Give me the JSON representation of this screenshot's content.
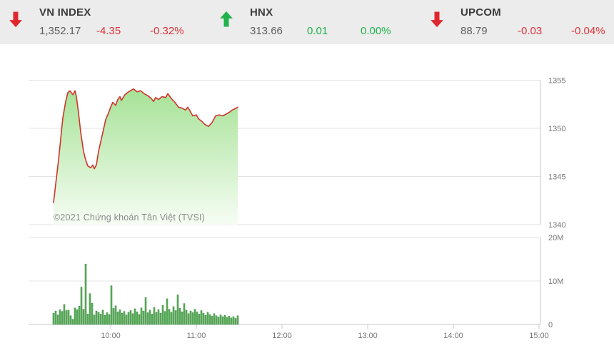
{
  "header": {
    "tickers": [
      {
        "name": "VN INDEX",
        "value": "1,352.17",
        "change": "-4.35",
        "change_pct": "-0.32%",
        "direction": "down"
      },
      {
        "name": "HNX",
        "value": "313.66",
        "change": "0.01",
        "change_pct": "0.00%",
        "direction": "up"
      },
      {
        "name": "UPCOM",
        "value": "88.79",
        "change": "-0.03",
        "change_pct": "-0.04%",
        "direction": "down"
      }
    ]
  },
  "watermark": "©2021 Chứng khoán Tân Việt (TVSI)",
  "colors": {
    "header_bg": "#ececec",
    "up_green": "#21b24b",
    "down_red": "#e0262d",
    "line_red": "#d0342c",
    "fill_green_top": "#a6e296",
    "fill_green_bottom": "#f6fdf4",
    "bar_green": "#5eb75c",
    "bar_edge": "#2e7d32",
    "grid": "#e3e3e3",
    "axis_line": "#c9c9c9",
    "axis_text": "#757575"
  },
  "chart_data": [
    {
      "type": "area",
      "name": "VN-Index intraday price",
      "x_axis": {
        "unit": "hour_of_day",
        "ticks": [
          {
            "v": 10,
            "label": "10:00"
          },
          {
            "v": 11,
            "label": "11:00"
          },
          {
            "v": 12,
            "label": "12:00"
          },
          {
            "v": 13,
            "label": "13:00"
          },
          {
            "v": 14,
            "label": "14:00"
          },
          {
            "v": 15,
            "label": "15:00"
          }
        ],
        "range_hours": [
          9.04,
          15.0
        ]
      },
      "y_axis": {
        "ticks": [
          {
            "v": 1340,
            "label": "1340"
          },
          {
            "v": 1345,
            "label": "1345"
          },
          {
            "v": 1350,
            "label": "1350"
          },
          {
            "v": 1355,
            "label": "1355"
          }
        ],
        "range": [
          1340,
          1357.3
        ],
        "grid": true
      },
      "points": [
        [
          9.333,
          1342.3
        ],
        [
          9.358,
          1344.2
        ],
        [
          9.392,
          1346.7
        ],
        [
          9.417,
          1348.9
        ],
        [
          9.442,
          1351.1
        ],
        [
          9.475,
          1352.8
        ],
        [
          9.5,
          1353.7
        ],
        [
          9.525,
          1353.9
        ],
        [
          9.558,
          1353.5
        ],
        [
          9.583,
          1353.9
        ],
        [
          9.6,
          1353.3
        ],
        [
          9.625,
          1351.6
        ],
        [
          9.65,
          1349.6
        ],
        [
          9.683,
          1347.6
        ],
        [
          9.708,
          1346.7
        ],
        [
          9.733,
          1346.1
        ],
        [
          9.767,
          1345.9
        ],
        [
          9.792,
          1346.2
        ],
        [
          9.808,
          1345.8
        ],
        [
          9.833,
          1346.2
        ],
        [
          9.858,
          1347.6
        ],
        [
          9.892,
          1348.9
        ],
        [
          9.917,
          1349.9
        ],
        [
          9.942,
          1350.9
        ],
        [
          9.975,
          1351.6
        ],
        [
          10.0,
          1352.2
        ],
        [
          10.025,
          1352.7
        ],
        [
          10.058,
          1352.4
        ],
        [
          10.083,
          1353.0
        ],
        [
          10.108,
          1353.3
        ],
        [
          10.125,
          1352.9
        ],
        [
          10.167,
          1353.5
        ],
        [
          10.208,
          1353.8
        ],
        [
          10.267,
          1354.1
        ],
        [
          10.308,
          1353.8
        ],
        [
          10.35,
          1353.9
        ],
        [
          10.392,
          1353.6
        ],
        [
          10.433,
          1353.4
        ],
        [
          10.475,
          1353.1
        ],
        [
          10.5,
          1352.8
        ],
        [
          10.525,
          1353.2
        ],
        [
          10.558,
          1353.0
        ],
        [
          10.6,
          1353.3
        ],
        [
          10.642,
          1353.2
        ],
        [
          10.667,
          1353.6
        ],
        [
          10.708,
          1353.1
        ],
        [
          10.75,
          1352.7
        ],
        [
          10.792,
          1352.2
        ],
        [
          10.833,
          1352.1
        ],
        [
          10.875,
          1351.9
        ],
        [
          10.9,
          1352.2
        ],
        [
          10.933,
          1351.7
        ],
        [
          10.958,
          1351.3
        ],
        [
          11.0,
          1351.4
        ],
        [
          11.025,
          1351.0
        ],
        [
          11.067,
          1350.7
        ],
        [
          11.1,
          1350.4
        ],
        [
          11.142,
          1350.2
        ],
        [
          11.183,
          1350.6
        ],
        [
          11.225,
          1351.3
        ],
        [
          11.267,
          1351.4
        ],
        [
          11.308,
          1351.3
        ],
        [
          11.35,
          1351.5
        ],
        [
          11.392,
          1351.7
        ],
        [
          11.417,
          1351.9
        ],
        [
          11.442,
          1352.0
        ],
        [
          11.483,
          1352.2
        ]
      ]
    },
    {
      "type": "bar",
      "name": "Volume",
      "y_axis": {
        "ticks": [
          {
            "v": 0,
            "label": "0"
          },
          {
            "v": 10,
            "label": "10M"
          },
          {
            "v": 20,
            "label": "20M"
          }
        ],
        "range_millions": [
          0,
          20
        ],
        "grid": true
      },
      "start_hour": 9.333,
      "step_hour": 0.025,
      "values_millions": [
        2.6,
        3.1,
        2.2,
        3.4,
        3.0,
        4.6,
        3.2,
        3.3,
        2.0,
        1.2,
        3.8,
        3.4,
        4.2,
        8.6,
        3.5,
        13.9,
        2.4,
        7.1,
        4.9,
        2.2,
        3.1,
        2.8,
        2.4,
        3.3,
        2.1,
        2.7,
        2.3,
        8.9,
        3.7,
        4.3,
        2.9,
        3.4,
        2.6,
        3.0,
        2.2,
        2.8,
        3.2,
        2.5,
        3.6,
        2.9,
        2.3,
        3.8,
        3.1,
        6.2,
        2.7,
        3.3,
        2.4,
        3.9,
        2.8,
        3.4,
        2.6,
        4.4,
        3.0,
        5.9,
        3.5,
        2.8,
        4.1,
        3.2,
        6.8,
        3.7,
        2.9,
        4.8,
        3.3,
        2.5,
        3.1,
        2.7,
        3.5,
        2.9,
        2.4,
        3.2,
        2.6,
        2.1,
        2.8,
        2.3,
        1.9,
        2.5,
        2.0,
        1.7,
        2.2,
        1.8,
        2.1,
        1.6,
        1.9,
        1.5,
        1.8,
        1.4,
        2.0
      ]
    }
  ]
}
